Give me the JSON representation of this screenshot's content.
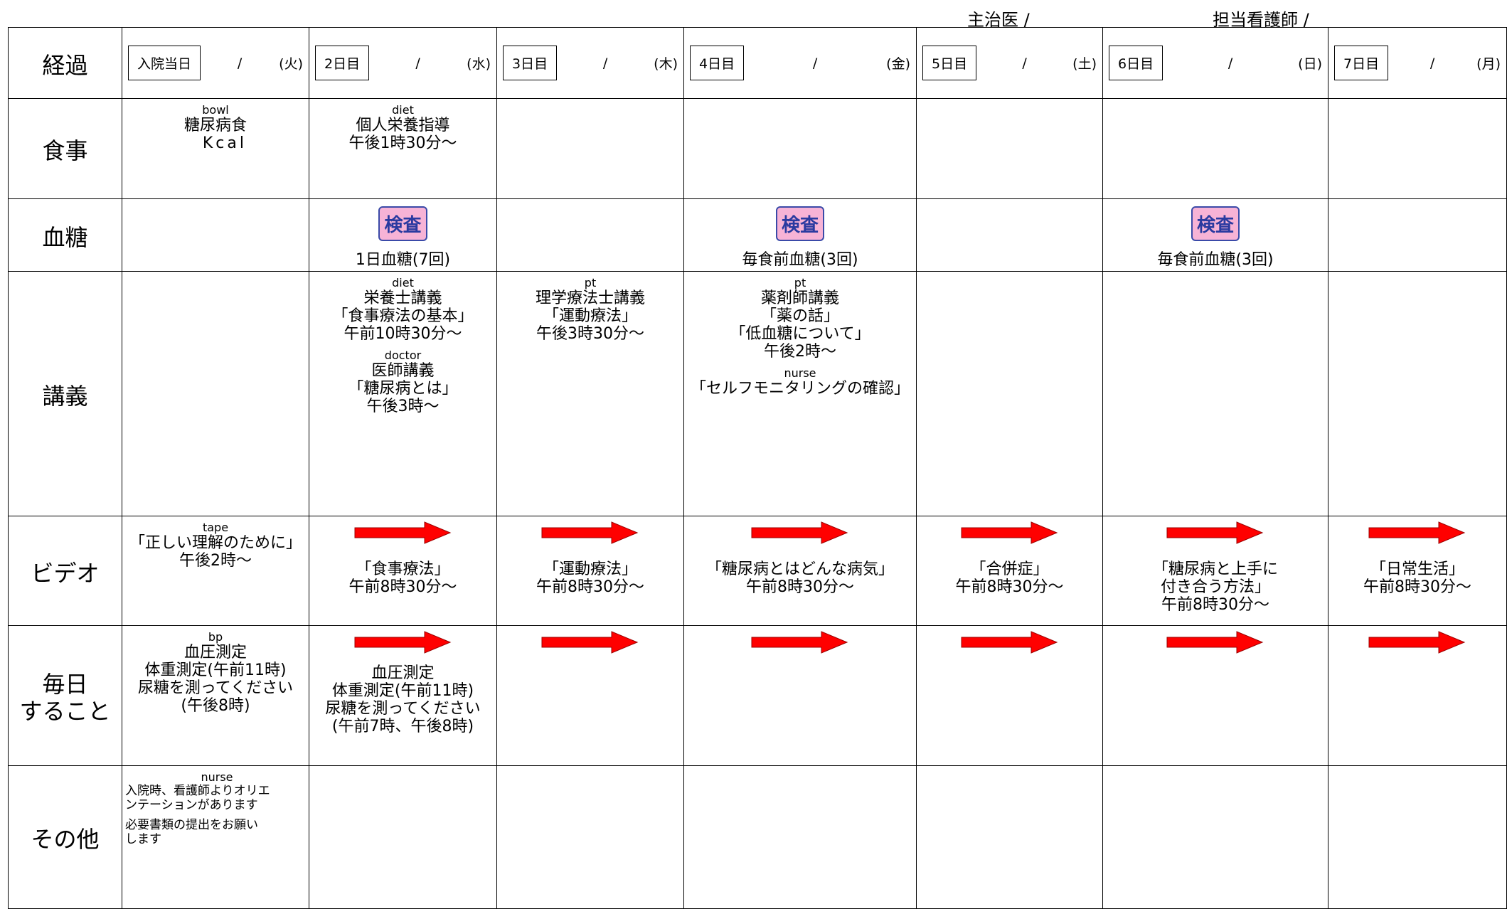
{
  "header": {
    "doctor": "主治医 /",
    "nurse": "担当看護師 /"
  },
  "row_labels": [
    [
      "経過"
    ],
    [
      "食事"
    ],
    [
      "血糖"
    ],
    [
      "講義"
    ],
    [
      "ビデオ"
    ],
    [
      "毎日",
      "すること"
    ],
    [
      "その他"
    ]
  ],
  "days": [
    {
      "name": "入院当日",
      "slash": "/",
      "weekday": "(火)"
    },
    {
      "name": "2日目",
      "slash": "/",
      "weekday": "(水)"
    },
    {
      "name": "3日目",
      "slash": "/",
      "weekday": "(木)"
    },
    {
      "name": "4日目",
      "slash": "/",
      "weekday": "(金)"
    },
    {
      "name": "5日目",
      "slash": "/",
      "weekday": "(土)"
    },
    {
      "name": "6日目",
      "slash": "/",
      "weekday": "(日)"
    },
    {
      "name": "7日目",
      "slash": "/",
      "weekday": "(月)"
    }
  ],
  "cells": [
    [
      [
        [
          "糖尿病食",
          "Kcal"
        ]
      ],
      [
        [
          "個人栄養指導",
          "午後1時30分～"
        ]
      ],
      [],
      [],
      [],
      [],
      []
    ],
    [
      [],
      [
        [
          "検査"
        ],
        [
          "1日血糖(7回)"
        ]
      ],
      [],
      [
        [
          "検査"
        ],
        [
          "毎食前血糖(3回)"
        ]
      ],
      [],
      [
        [
          "検査"
        ],
        [
          "毎食前血糖(3回)"
        ]
      ],
      []
    ],
    [
      [],
      [
        [
          "栄養士講義",
          "「食事療法の基本」",
          "午前10時30分～"
        ],
        [
          "医師講義",
          "「糖尿病とは」",
          "午後3時～"
        ]
      ],
      [
        [
          "理学療法士講義",
          "「運動療法」",
          "午後3時30分～"
        ]
      ],
      [
        [
          "薬剤師講義",
          "「薬の話」",
          "「低血糖について」",
          "午後2時～"
        ],
        [
          "「セルフモニタリングの確認」"
        ]
      ],
      [],
      [],
      []
    ],
    [
      [
        [
          "「正しい理解のために」",
          "午後2時～"
        ]
      ],
      [
        [
          "「食事療法」",
          "午前8時30分～"
        ]
      ],
      [
        [
          "「運動療法」",
          "午前8時30分～"
        ]
      ],
      [
        [
          "「糖尿病とはどんな病気」",
          "午前8時30分～"
        ]
      ],
      [
        [
          "「合併症」",
          "午前8時30分～"
        ]
      ],
      [
        [
          "「糖尿病と上手に",
          "付き合う方法」",
          "午前8時30分～"
        ]
      ],
      [
        [
          "「日常生活」",
          "午前8時30分～"
        ]
      ]
    ],
    [
      [
        [
          "血圧測定",
          "体重測定(午前11時)",
          "尿糖を測ってください",
          "(午後8時)"
        ]
      ],
      [
        [
          "血圧測定",
          "体重測定(午前11時)",
          "尿糖を測ってください",
          "(午前7時、午後8時)"
        ]
      ],
      [],
      [],
      [],
      [],
      []
    ],
    [
      [
        [
          "入院時、看護師よりオリエ",
          "ンテーションがあります"
        ],
        [
          "必要書類の提出をお願い",
          "します"
        ]
      ],
      [],
      [],
      [],
      [],
      [],
      []
    ]
  ]
}
